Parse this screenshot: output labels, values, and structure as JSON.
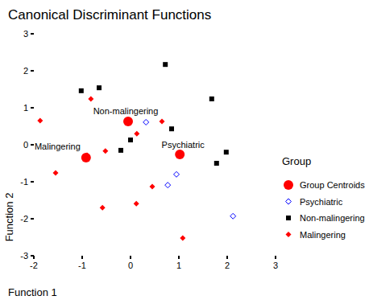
{
  "chart_data": {
    "type": "scatter",
    "title": "Canonical Discriminant Functions",
    "x_label": "Function 1",
    "y_label": "Function 2",
    "legend_title": "Group",
    "legend": "right",
    "xlim": [
      -2,
      3
    ],
    "ylim": [
      -3,
      3
    ],
    "xticks": [
      -2,
      -1,
      0,
      1,
      2,
      3
    ],
    "yticks": [
      -3,
      -2,
      -1,
      0,
      1,
      2,
      3
    ],
    "grid": false,
    "series": [
      {
        "name": "Group Centroids",
        "color": "#ff0000",
        "marker": "circle",
        "x": [
          -0.05,
          -0.92,
          1.02
        ],
        "values": [
          0.63,
          -0.35,
          -0.26
        ],
        "labels": [
          "Non-malingering",
          "Malingering",
          "Psychiatric"
        ]
      },
      {
        "name": "Psychiatric",
        "color": "#0000ff",
        "marker": "diamond_open",
        "x": [
          0.32,
          0.95,
          0.77,
          2.12
        ],
        "values": [
          0.61,
          -0.8,
          -1.09,
          -1.93
        ]
      },
      {
        "name": "Non-malingering",
        "color": "#000000",
        "marker": "square",
        "x": [
          -1.02,
          -0.65,
          0.72,
          1.68,
          0.85,
          0.0,
          -0.2,
          1.98,
          1.78
        ],
        "values": [
          1.46,
          1.54,
          2.17,
          1.24,
          0.43,
          0.13,
          -0.15,
          -0.2,
          -0.5
        ]
      },
      {
        "name": "Malingering",
        "color": "#ff0000",
        "marker": "diamond",
        "x": [
          -1.87,
          -0.82,
          0.65,
          0.13,
          -0.9,
          -0.52,
          -1.55,
          0.45,
          0.12,
          -0.58,
          1.08
        ],
        "values": [
          0.65,
          1.24,
          0.63,
          0.3,
          -0.28,
          -0.17,
          -0.76,
          -1.13,
          -1.59,
          -1.7,
          -2.52
        ]
      }
    ]
  }
}
